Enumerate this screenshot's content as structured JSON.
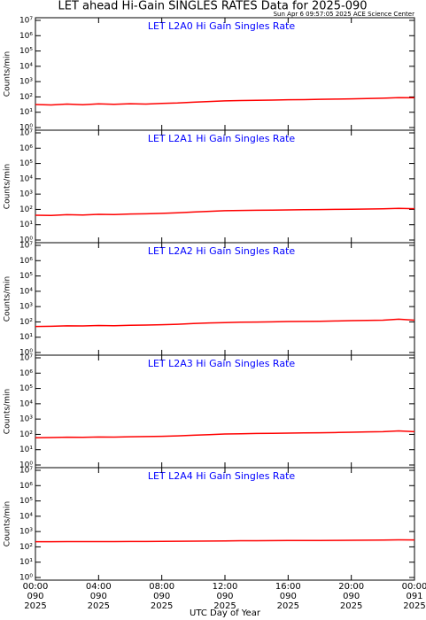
{
  "title": "LET ahead Hi-Gain SINGLES RATES Data for 2025-090",
  "subtitle": "Sun Apr  6 09:57:05 2025 ACE Science Center",
  "xlabel": "UTC Day of Year",
  "chart_data": [
    {
      "type": "line",
      "title": "LET L2A0 Hi Gain Singles Rate",
      "ylabel": "Counts/min",
      "yscale": "log",
      "xlim": [
        0,
        24
      ],
      "xticks": [
        0,
        4,
        8,
        12,
        16,
        20,
        24
      ],
      "ylim": [
        1,
        10000000
      ],
      "yticks": [
        {
          "value": 1,
          "label": "10⁰"
        },
        {
          "value": 10,
          "label": "10¹"
        },
        {
          "value": 100,
          "label": "10²"
        },
        {
          "value": 1000,
          "label": "10³"
        },
        {
          "value": 10000,
          "label": "10⁴"
        },
        {
          "value": 100000,
          "label": "10⁵"
        },
        {
          "value": 1000000,
          "label": "10⁶"
        },
        {
          "value": 10000000,
          "label": "10⁷"
        }
      ],
      "x": [
        0,
        1,
        2,
        3,
        4,
        5,
        6,
        7,
        8,
        9,
        10,
        11,
        12,
        13,
        14,
        15,
        16,
        17,
        18,
        19,
        20,
        21,
        22,
        23,
        24
      ],
      "series": [
        {
          "color": "#ff0000",
          "values": [
            32,
            30,
            34,
            31,
            35,
            33,
            36,
            34,
            38,
            40,
            45,
            50,
            55,
            58,
            60,
            62,
            65,
            66,
            70,
            72,
            75,
            78,
            82,
            90,
            88
          ]
        }
      ]
    },
    {
      "type": "line",
      "title": "LET L2A1 Hi Gain Singles Rate",
      "ylabel": "Counts/min",
      "yscale": "log",
      "xlim": [
        0,
        24
      ],
      "xticks": [
        0,
        4,
        8,
        12,
        16,
        20,
        24
      ],
      "ylim": [
        1,
        10000000
      ],
      "yticks": [
        {
          "value": 1,
          "label": "10⁰"
        },
        {
          "value": 10,
          "label": "10¹"
        },
        {
          "value": 100,
          "label": "10²"
        },
        {
          "value": 1000,
          "label": "10³"
        },
        {
          "value": 10000,
          "label": "10⁴"
        },
        {
          "value": 100000,
          "label": "10⁵"
        },
        {
          "value": 1000000,
          "label": "10⁶"
        },
        {
          "value": 10000000,
          "label": "10⁷"
        }
      ],
      "x": [
        0,
        1,
        2,
        3,
        4,
        5,
        6,
        7,
        8,
        9,
        10,
        11,
        12,
        13,
        14,
        15,
        16,
        17,
        18,
        19,
        20,
        21,
        22,
        23,
        24
      ],
      "series": [
        {
          "color": "#ff0000",
          "values": [
            42,
            40,
            45,
            43,
            48,
            46,
            50,
            52,
            55,
            60,
            68,
            75,
            82,
            85,
            88,
            90,
            92,
            95,
            98,
            100,
            102,
            105,
            110,
            118,
            112
          ]
        }
      ]
    },
    {
      "type": "line",
      "title": "LET L2A2 Hi Gain Singles Rate",
      "ylabel": "Counts/min",
      "yscale": "log",
      "xlim": [
        0,
        24
      ],
      "xticks": [
        0,
        4,
        8,
        12,
        16,
        20,
        24
      ],
      "ylim": [
        1,
        10000000
      ],
      "yticks": [
        {
          "value": 1,
          "label": "10⁰"
        },
        {
          "value": 10,
          "label": "10¹"
        },
        {
          "value": 100,
          "label": "10²"
        },
        {
          "value": 1000,
          "label": "10³"
        },
        {
          "value": 10000,
          "label": "10⁴"
        },
        {
          "value": 100000,
          "label": "10⁵"
        },
        {
          "value": 1000000,
          "label": "10⁶"
        },
        {
          "value": 10000000,
          "label": "10⁷"
        }
      ],
      "x": [
        0,
        1,
        2,
        3,
        4,
        5,
        6,
        7,
        8,
        9,
        10,
        11,
        12,
        13,
        14,
        15,
        16,
        17,
        18,
        19,
        20,
        21,
        22,
        23,
        24
      ],
      "series": [
        {
          "color": "#ff0000",
          "values": [
            50,
            52,
            55,
            54,
            58,
            56,
            60,
            62,
            65,
            70,
            78,
            85,
            90,
            95,
            98,
            100,
            105,
            108,
            110,
            115,
            120,
            125,
            130,
            150,
            130
          ]
        }
      ]
    },
    {
      "type": "line",
      "title": "LET L2A3 Hi Gain Singles Rate",
      "ylabel": "Counts/min",
      "yscale": "log",
      "xlim": [
        0,
        24
      ],
      "xticks": [
        0,
        4,
        8,
        12,
        16,
        20,
        24
      ],
      "ylim": [
        1,
        10000000
      ],
      "yticks": [
        {
          "value": 1,
          "label": "10⁰"
        },
        {
          "value": 10,
          "label": "10¹"
        },
        {
          "value": 100,
          "label": "10²"
        },
        {
          "value": 1000,
          "label": "10³"
        },
        {
          "value": 10000,
          "label": "10⁴"
        },
        {
          "value": 100000,
          "label": "10⁵"
        },
        {
          "value": 1000000,
          "label": "10⁶"
        },
        {
          "value": 10000000,
          "label": "10⁷"
        }
      ],
      "x": [
        0,
        1,
        2,
        3,
        4,
        5,
        6,
        7,
        8,
        9,
        10,
        11,
        12,
        13,
        14,
        15,
        16,
        17,
        18,
        19,
        20,
        21,
        22,
        23,
        24
      ],
      "series": [
        {
          "color": "#ff0000",
          "values": [
            60,
            62,
            65,
            64,
            68,
            66,
            70,
            72,
            75,
            80,
            88,
            95,
            105,
            110,
            115,
            118,
            120,
            125,
            128,
            132,
            138,
            145,
            150,
            170,
            150
          ]
        }
      ]
    },
    {
      "type": "line",
      "title": "LET L2A4 Hi Gain Singles Rate",
      "ylabel": "Counts/min",
      "yscale": "log",
      "xlim": [
        0,
        24
      ],
      "xticks": [
        {
          "value": 0,
          "label": "00:00\n090\n2025"
        },
        {
          "value": 4,
          "label": "04:00\n090\n2025"
        },
        {
          "value": 8,
          "label": "08:00\n090\n2025"
        },
        {
          "value": 12,
          "label": "12:00\n090\n2025"
        },
        {
          "value": 16,
          "label": "16:00\n090\n2025"
        },
        {
          "value": 20,
          "label": "20:00\n090\n2025"
        },
        {
          "value": 24,
          "label": "00:00\n091\n2025"
        }
      ],
      "ylim": [
        1,
        10000000
      ],
      "yticks": [
        {
          "value": 1,
          "label": "10⁰"
        },
        {
          "value": 10,
          "label": "10¹"
        },
        {
          "value": 100,
          "label": "10²"
        },
        {
          "value": 1000,
          "label": "10³"
        },
        {
          "value": 10000,
          "label": "10⁴"
        },
        {
          "value": 100000,
          "label": "10⁵"
        },
        {
          "value": 1000000,
          "label": "10⁶"
        },
        {
          "value": 10000000,
          "label": "10⁷"
        }
      ],
      "x": [
        0,
        1,
        2,
        3,
        4,
        5,
        6,
        7,
        8,
        9,
        10,
        11,
        12,
        13,
        14,
        15,
        16,
        17,
        18,
        19,
        20,
        21,
        22,
        23,
        24
      ],
      "series": [
        {
          "color": "#ff0000",
          "values": [
            215,
            218,
            220,
            220,
            222,
            220,
            225,
            225,
            228,
            230,
            235,
            240,
            245,
            250,
            252,
            255,
            258,
            260,
            262,
            265,
            270,
            275,
            280,
            290,
            285
          ]
        }
      ]
    }
  ]
}
